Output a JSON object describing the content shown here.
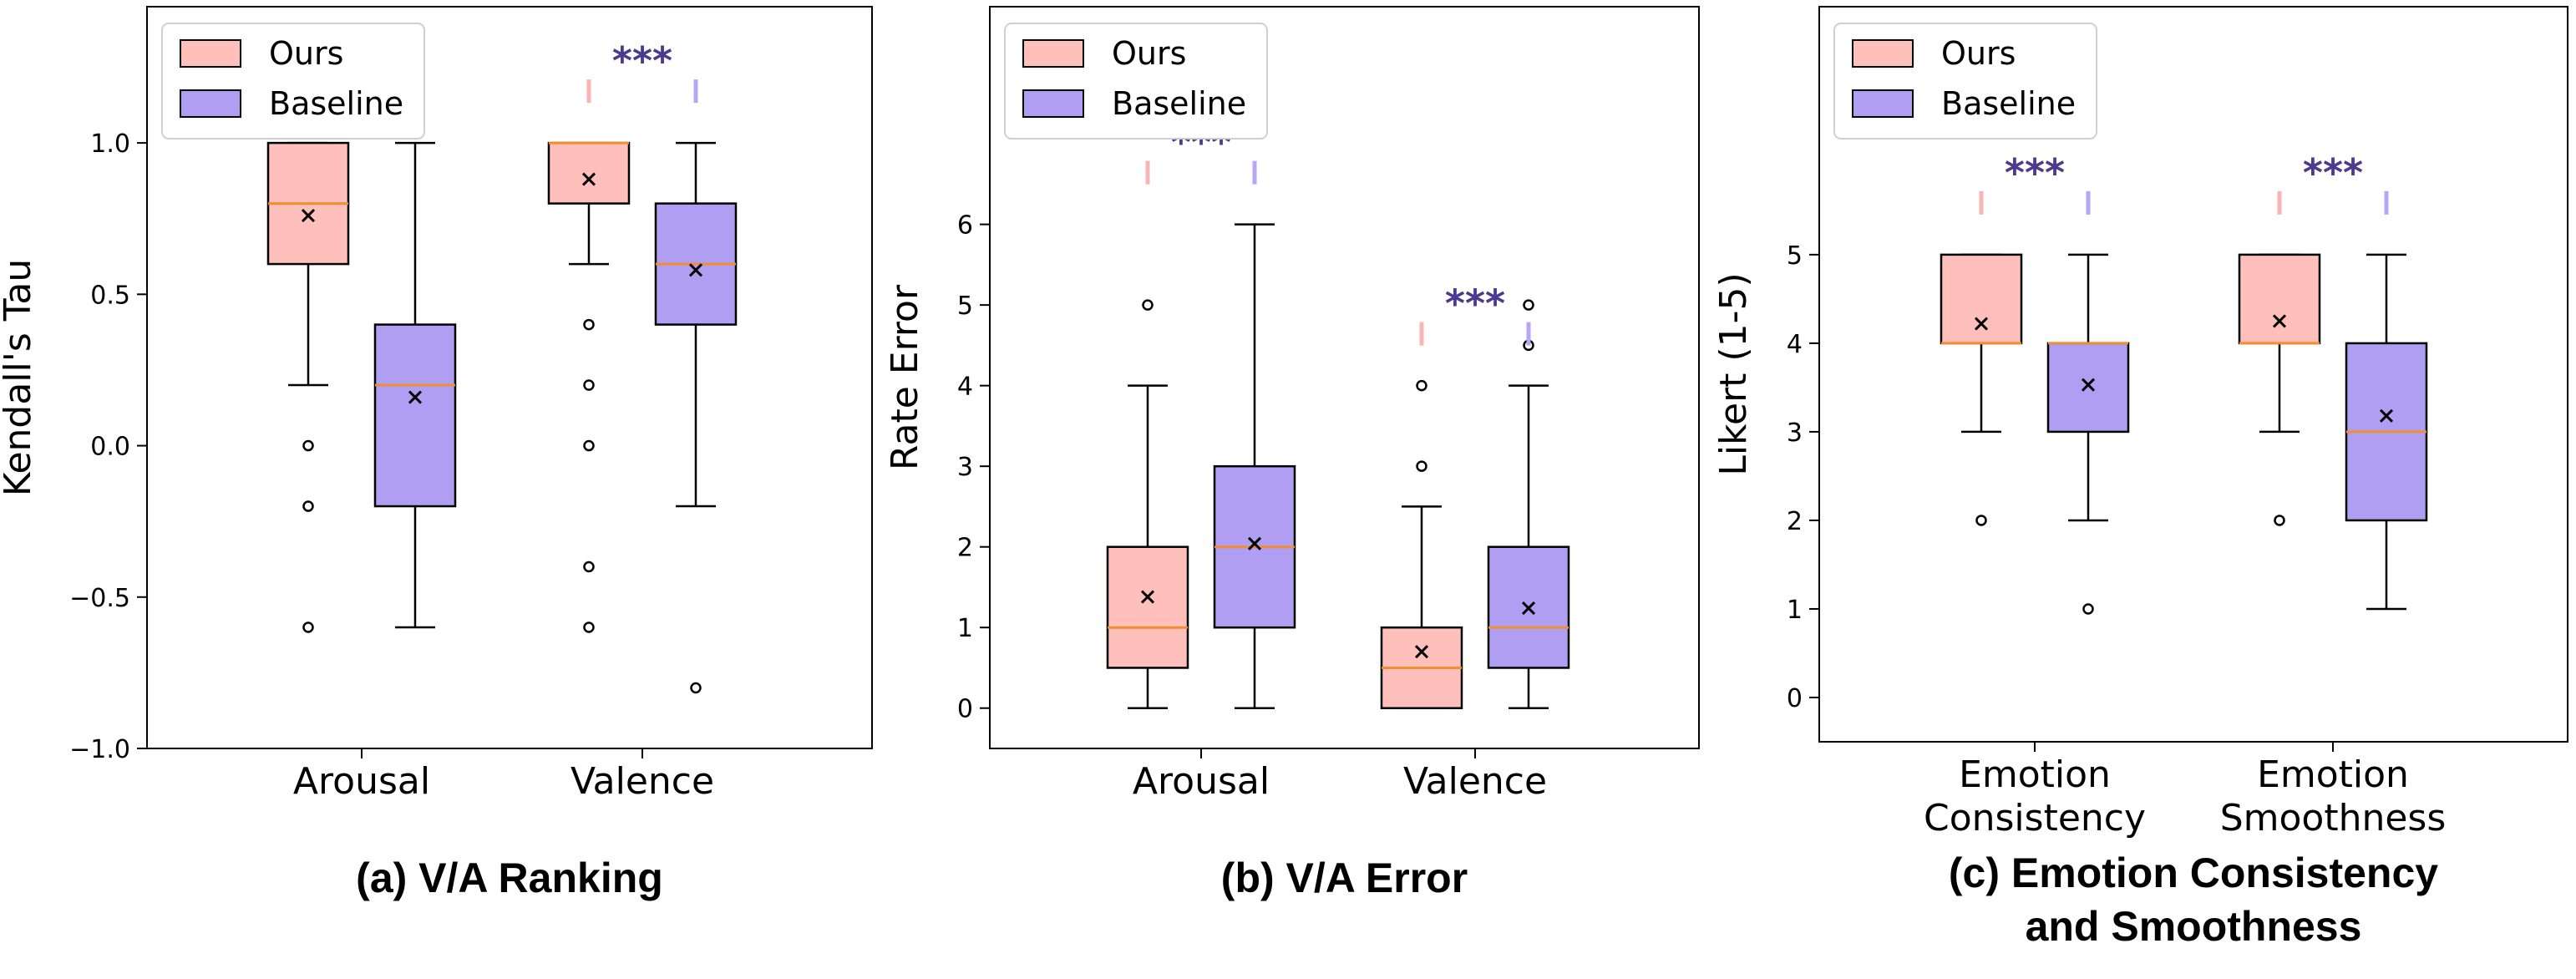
{
  "colors": {
    "ours_fill": "#ffc0bb",
    "baseline_fill": "#b09ef3",
    "median": "#f28e2b",
    "stars": "#4b3b8f",
    "bracket_left": "#f7b6b4",
    "bracket_right": "#b7a6f4",
    "frame": "#000000"
  },
  "legend": {
    "ours": "Ours",
    "baseline": "Baseline"
  },
  "significance": "***",
  "chart_data": [
    {
      "type": "box",
      "title": "(a) V/A Ranking",
      "ylabel": "Kendall's Tau",
      "ylim": [
        -1.0,
        1.45
      ],
      "yticks": [
        -1.0,
        -0.5,
        0.0,
        0.5,
        1.0
      ],
      "ytick_labels": [
        "−1.0",
        "−0.5",
        "0.0",
        "0.5",
        "1.0"
      ],
      "categories": [
        [
          "Arousal"
        ],
        [
          "Valence"
        ]
      ],
      "groups": [
        {
          "ours": {
            "whislo": 0.2,
            "q1": 0.6,
            "med": 0.8,
            "q3": 1.0,
            "whishi": 1.0,
            "mean": 0.76,
            "fliers": [
              0.0,
              -0.2,
              -0.6
            ]
          },
          "baseline": {
            "whislo": -0.6,
            "q1": -0.2,
            "med": 0.2,
            "q3": 0.4,
            "whishi": 1.0,
            "mean": 0.16,
            "fliers": []
          }
        },
        {
          "ours": {
            "whislo": 0.6,
            "q1": 0.8,
            "med": 1.0,
            "q3": 1.0,
            "whishi": 1.0,
            "mean": 0.88,
            "fliers": [
              0.4,
              0.2,
              0.0,
              -0.4,
              -0.6
            ]
          },
          "baseline": {
            "whislo": -0.2,
            "q1": 0.4,
            "med": 0.6,
            "q3": 0.8,
            "whishi": 1.0,
            "mean": 0.58,
            "fliers": [
              -0.8
            ]
          }
        }
      ]
    },
    {
      "type": "box",
      "title": "(b) V/A Error",
      "ylabel": "Rate Error",
      "ylim": [
        -0.5,
        8.7
      ],
      "yticks": [
        0,
        1,
        2,
        3,
        4,
        5,
        6
      ],
      "ytick_labels": [
        "0",
        "1",
        "2",
        "3",
        "4",
        "5",
        "6"
      ],
      "categories": [
        [
          "Arousal"
        ],
        [
          "Valence"
        ]
      ],
      "groups": [
        {
          "ours": {
            "whislo": 0,
            "q1": 0.5,
            "med": 1.0,
            "q3": 2.0,
            "whishi": 4.0,
            "mean": 1.38,
            "fliers": [
              5.0
            ]
          },
          "baseline": {
            "whislo": 0,
            "q1": 1.0,
            "med": 2.0,
            "q3": 3.0,
            "whishi": 6.0,
            "mean": 2.04,
            "fliers": []
          }
        },
        {
          "ours": {
            "whislo": 0,
            "q1": 0,
            "med": 0.5,
            "q3": 1.0,
            "whishi": 2.5,
            "mean": 0.7,
            "fliers": [
              3.0,
              4.0
            ]
          },
          "baseline": {
            "whislo": 0,
            "q1": 0.5,
            "med": 1.0,
            "q3": 2.0,
            "whishi": 4.0,
            "mean": 1.24,
            "fliers": [
              4.5,
              5.0
            ]
          }
        }
      ]
    },
    {
      "type": "box",
      "title": "(c) Emotion Consistency and Smoothness",
      "ylabel": "Likert (1-5)",
      "ylim": [
        -0.5,
        7.8
      ],
      "yticks": [
        0,
        1,
        2,
        3,
        4,
        5
      ],
      "ytick_labels": [
        "0",
        "1",
        "2",
        "3",
        "4",
        "5"
      ],
      "categories": [
        [
          "Emotion",
          "Consistency"
        ],
        [
          "Emotion",
          "Smoothness"
        ]
      ],
      "groups": [
        {
          "ours": {
            "whislo": 3,
            "q1": 4,
            "med": 4,
            "q3": 5,
            "whishi": 5,
            "mean": 4.22,
            "fliers": [
              2
            ]
          },
          "baseline": {
            "whislo": 2,
            "q1": 3,
            "med": 4,
            "q3": 4,
            "whishi": 5,
            "mean": 3.53,
            "fliers": [
              1
            ]
          }
        },
        {
          "ours": {
            "whislo": 3,
            "q1": 4,
            "med": 4,
            "q3": 5,
            "whishi": 5,
            "mean": 4.25,
            "fliers": [
              2
            ]
          },
          "baseline": {
            "whislo": 1,
            "q1": 2,
            "med": 3,
            "q3": 4,
            "whishi": 5,
            "mean": 3.18,
            "fliers": []
          }
        }
      ]
    }
  ]
}
